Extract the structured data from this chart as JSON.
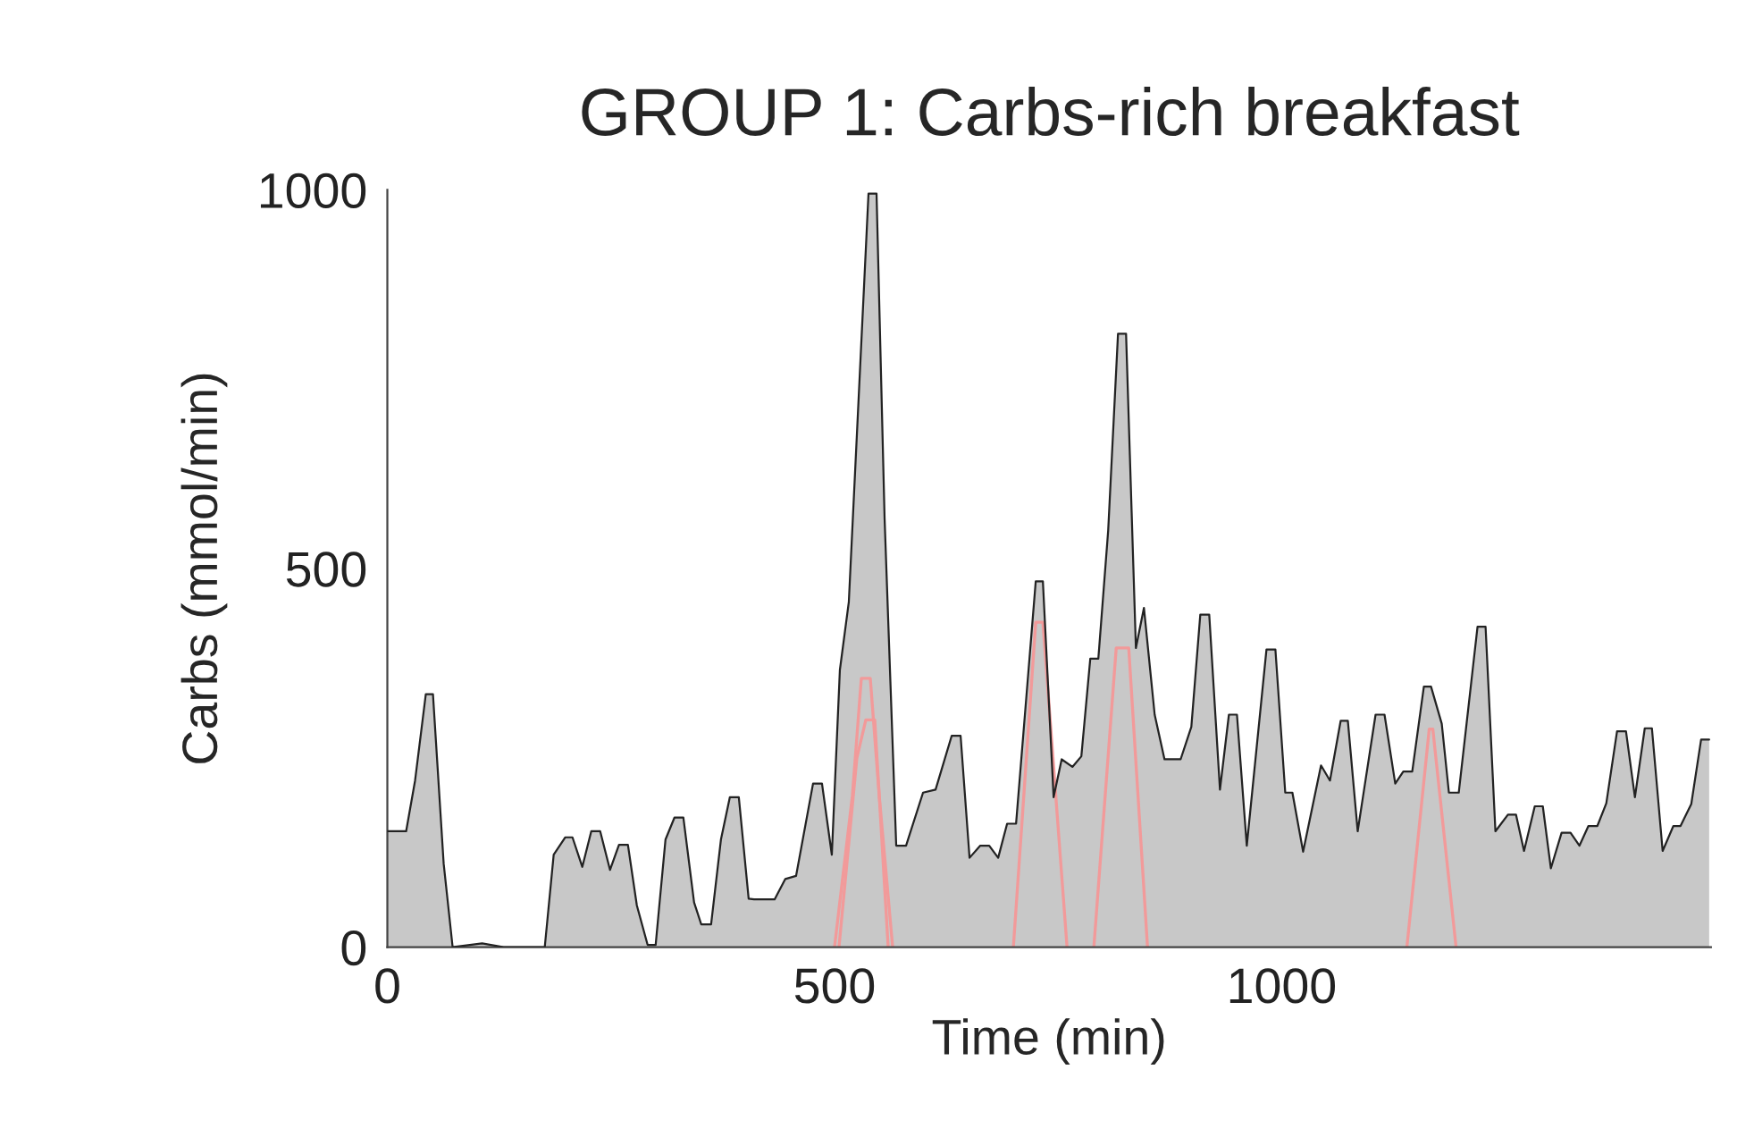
{
  "chart_data": {
    "type": "area",
    "title": "GROUP 1: Carbs-rich breakfast",
    "xlabel": "Time (min)",
    "ylabel": "Carbs (mmol/min)",
    "xlim": [
      0,
      1480
    ],
    "ylim": [
      0,
      1000
    ],
    "xticks": [
      0,
      500,
      1000
    ],
    "yticks": [
      0,
      500,
      1000
    ],
    "grid": false,
    "legend": false,
    "series": [
      {
        "color": "#c8c8c8",
        "x": [
          0,
          21,
          31,
          43,
          51,
          63,
          73,
          106,
          130,
          176,
          186,
          199,
          207,
          218,
          228,
          238,
          249,
          259,
          269,
          279,
          291,
          300,
          311,
          321,
          331,
          343,
          351,
          362,
          373,
          383,
          393,
          404,
          410,
          433,
          445,
          457,
          476,
          486,
          497,
          506,
          516,
          538,
          547,
          556,
          569,
          580,
          599,
          613,
          631,
          641,
          651,
          663,
          673,
          683,
          693,
          703,
          725,
          733,
          745,
          754,
          766,
          776,
          786,
          795,
          806,
          817,
          826,
          837,
          846,
          858,
          869,
          887,
          899,
          909,
          919,
          931,
          941,
          950,
          961,
          983,
          993,
          1004,
          1012,
          1024,
          1044,
          1054,
          1066,
          1074,
          1085,
          1105,
          1115,
          1127,
          1136,
          1146,
          1159,
          1167,
          1179,
          1187,
          1198,
          1219,
          1228,
          1239,
          1253,
          1262,
          1271,
          1283,
          1292,
          1301,
          1313,
          1323,
          1333,
          1343,
          1353,
          1363,
          1375,
          1385,
          1395,
          1406,
          1414,
          1426,
          1438,
          1446,
          1458,
          1469,
          1478
        ],
        "values": [
          153,
          153,
          220,
          334,
          334,
          110,
          0,
          5,
          0,
          0,
          122,
          145,
          145,
          106,
          153,
          153,
          102,
          135,
          135,
          55,
          3,
          3,
          142,
          171,
          171,
          59,
          30,
          30,
          142,
          198,
          198,
          64,
          63,
          63,
          90,
          94,
          216,
          216,
          122,
          366,
          456,
          995,
          995,
          566,
          134,
          134,
          204,
          208,
          279,
          279,
          118,
          134,
          134,
          118,
          163,
          163,
          483,
          483,
          198,
          248,
          238,
          252,
          381,
          381,
          550,
          810,
          810,
          395,
          448,
          307,
          248,
          248,
          291,
          439,
          439,
          208,
          307,
          307,
          134,
          393,
          393,
          204,
          204,
          126,
          240,
          220,
          299,
          299,
          153,
          307,
          307,
          216,
          232,
          232,
          344,
          344,
          295,
          204,
          204,
          423,
          423,
          153,
          175,
          175,
          127,
          186,
          186,
          104,
          151,
          151,
          134,
          160,
          160,
          190,
          285,
          285,
          198,
          289,
          289,
          127,
          160,
          160,
          189,
          274,
          274
        ]
      },
      {
        "type": "line",
        "color": "#f29a9a",
        "x": [
          500,
          520,
          530,
          540,
          550,
          565
        ],
        "values": [
          0,
          200,
          355,
          355,
          200,
          0
        ]
      },
      {
        "type": "line",
        "color": "#f29a9a",
        "x": [
          505,
          525,
          535,
          545,
          560
        ],
        "values": [
          0,
          250,
          300,
          300,
          0
        ]
      },
      {
        "type": "line",
        "color": "#f29a9a",
        "x": [
          700,
          725,
          733,
          760
        ],
        "values": [
          0,
          429,
          429,
          0
        ]
      },
      {
        "type": "line",
        "color": "#f29a9a",
        "x": [
          790,
          815,
          829,
          850
        ],
        "values": [
          0,
          395,
          395,
          0
        ]
      },
      {
        "type": "line",
        "color": "#f29a9a",
        "x": [
          1140,
          1165,
          1169,
          1195
        ],
        "values": [
          0,
          288,
          288,
          0
        ]
      }
    ]
  }
}
